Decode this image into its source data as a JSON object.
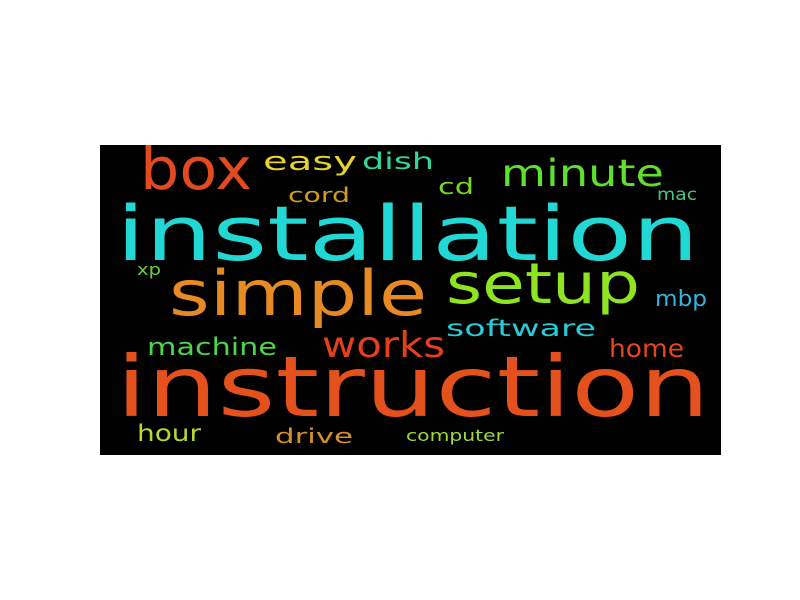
{
  "cloud": {
    "background": "#000000",
    "words": [
      {
        "key": "instruction",
        "text": "instruction",
        "color": "#e4511d"
      },
      {
        "key": "installation",
        "text": "installation",
        "color": "#22d8d4"
      },
      {
        "key": "simple",
        "text": "simple",
        "color": "#e88a23"
      },
      {
        "key": "setup",
        "text": "setup",
        "color": "#8ee51f"
      },
      {
        "key": "box",
        "text": "box",
        "color": "#e24a1f"
      },
      {
        "key": "minute",
        "text": "minute",
        "color": "#5fe02f"
      },
      {
        "key": "easy",
        "text": "easy",
        "color": "#e8d32b"
      },
      {
        "key": "dish",
        "text": "dish",
        "color": "#2fd89b"
      },
      {
        "key": "cd",
        "text": "cd",
        "color": "#7ad81f"
      },
      {
        "key": "cord",
        "text": "cord",
        "color": "#d39a22"
      },
      {
        "key": "mac",
        "text": "mac",
        "color": "#48c67c"
      },
      {
        "key": "works",
        "text": "works",
        "color": "#e5401c"
      },
      {
        "key": "software",
        "text": "software",
        "color": "#28ccd8"
      },
      {
        "key": "mbp",
        "text": "mbp",
        "color": "#2fb6e0"
      },
      {
        "key": "machine",
        "text": "machine",
        "color": "#4cd64a"
      },
      {
        "key": "home",
        "text": "home",
        "color": "#e5461c"
      },
      {
        "key": "xp",
        "text": "xp",
        "color": "#66cf3c"
      },
      {
        "key": "hour",
        "text": "hour",
        "color": "#b3dc2a"
      },
      {
        "key": "drive",
        "text": "drive",
        "color": "#d8902a"
      },
      {
        "key": "computer",
        "text": "computer",
        "color": "#9cdc38"
      }
    ]
  }
}
